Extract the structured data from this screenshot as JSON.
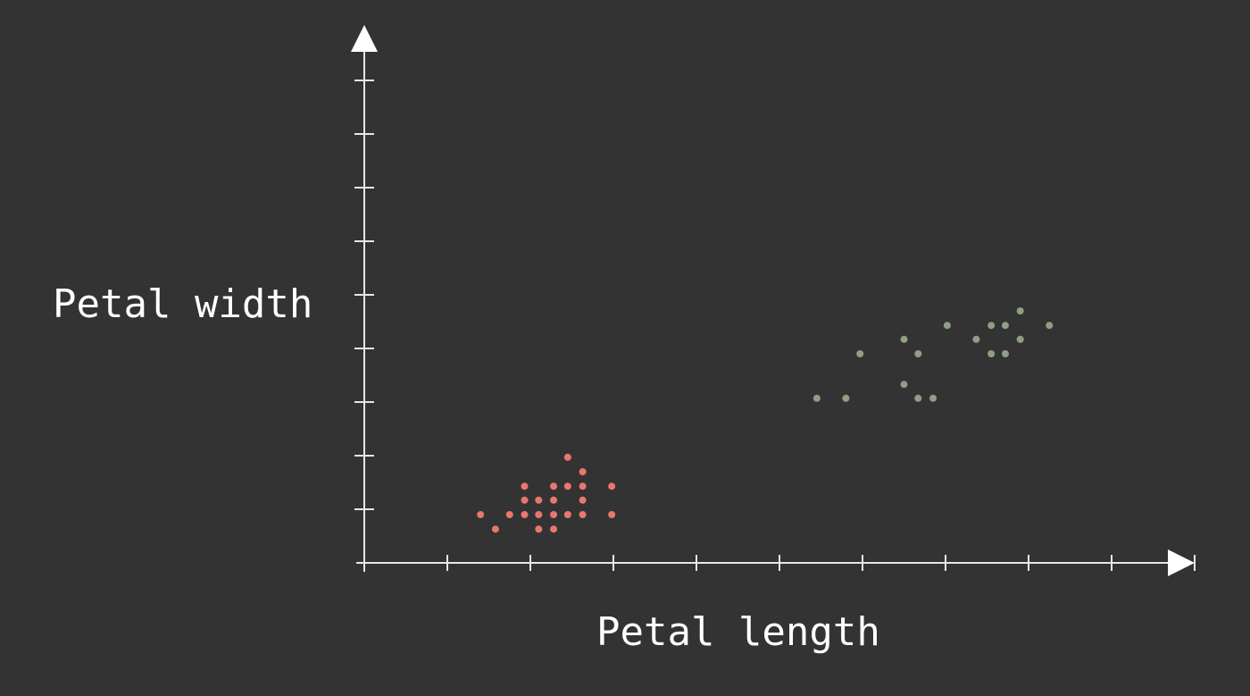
{
  "chart_data": {
    "type": "scatter",
    "title": "",
    "xlabel": "Petal length",
    "ylabel": "Petal width",
    "xlim": [
      0,
      10
    ],
    "ylim": [
      0,
      9
    ],
    "grid": false,
    "legend": "none",
    "series": [
      {
        "color": "#e8776e",
        "points": [
          {
            "x": 1.4,
            "y": 0.9
          },
          {
            "x": 1.58,
            "y": 0.63
          },
          {
            "x": 1.75,
            "y": 0.9
          },
          {
            "x": 1.93,
            "y": 0.9
          },
          {
            "x": 1.93,
            "y": 1.17
          },
          {
            "x": 1.93,
            "y": 1.43
          },
          {
            "x": 2.1,
            "y": 0.63
          },
          {
            "x": 2.1,
            "y": 0.9
          },
          {
            "x": 2.1,
            "y": 1.17
          },
          {
            "x": 2.28,
            "y": 0.63
          },
          {
            "x": 2.28,
            "y": 0.9
          },
          {
            "x": 2.28,
            "y": 1.17
          },
          {
            "x": 2.28,
            "y": 1.43
          },
          {
            "x": 2.45,
            "y": 0.9
          },
          {
            "x": 2.45,
            "y": 1.43
          },
          {
            "x": 2.45,
            "y": 1.97
          },
          {
            "x": 2.63,
            "y": 0.9
          },
          {
            "x": 2.63,
            "y": 1.17
          },
          {
            "x": 2.63,
            "y": 1.43
          },
          {
            "x": 2.63,
            "y": 1.7
          },
          {
            "x": 2.98,
            "y": 0.9
          },
          {
            "x": 2.98,
            "y": 1.43
          }
        ]
      },
      {
        "color": "#8f9f86",
        "points": [
          {
            "x": 5.45,
            "y": 3.07
          },
          {
            "x": 5.8,
            "y": 3.07
          },
          {
            "x": 5.97,
            "y": 3.9
          },
          {
            "x": 6.5,
            "y": 3.33
          },
          {
            "x": 6.5,
            "y": 4.17
          },
          {
            "x": 6.67,
            "y": 3.07
          },
          {
            "x": 6.67,
            "y": 3.9
          },
          {
            "x": 6.85,
            "y": 3.07
          },
          {
            "x": 7.02,
            "y": 4.43
          },
          {
            "x": 7.37,
            "y": 4.17
          },
          {
            "x": 7.55,
            "y": 3.9
          },
          {
            "x": 7.55,
            "y": 4.43
          },
          {
            "x": 7.72,
            "y": 3.9
          },
          {
            "x": 7.72,
            "y": 4.43
          },
          {
            "x": 7.9,
            "y": 4.17
          },
          {
            "x": 7.9,
            "y": 4.7
          },
          {
            "x": 8.25,
            "y": 4.43
          }
        ]
      }
    ]
  }
}
